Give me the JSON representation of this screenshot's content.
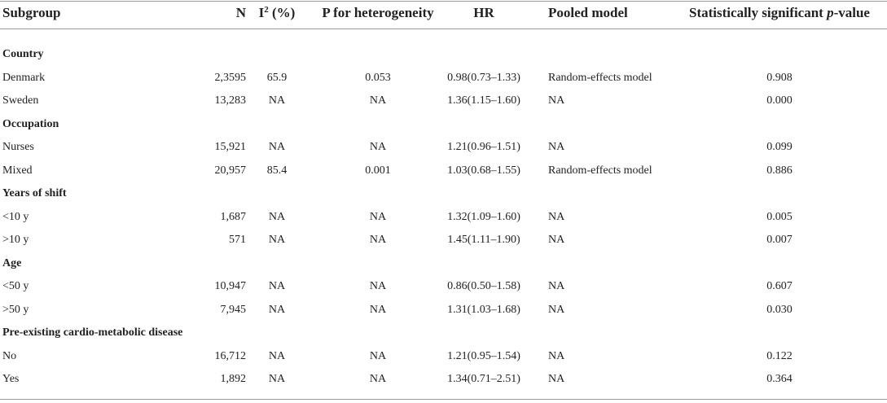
{
  "table": {
    "columns": [
      "Subgroup",
      "N",
      {
        "base": "I",
        "sup": "2",
        "rest": " (%)"
      },
      "P for heterogeneity",
      "HR",
      "Pooled model",
      {
        "base": "Statistically significant ",
        "italic": "p",
        "rest": "-value"
      }
    ],
    "groups": [
      {
        "title": "Country",
        "rows": [
          [
            "Denmark",
            "2,3595",
            "65.9",
            "0.053",
            "0.98(0.73–1.33)",
            "Random-effects model",
            "0.908"
          ],
          [
            "Sweden",
            "13,283",
            "NA",
            "NA",
            "1.36(1.15–1.60)",
            "NA",
            "0.000"
          ]
        ]
      },
      {
        "title": "Occupation",
        "rows": [
          [
            "Nurses",
            "15,921",
            "NA",
            "NA",
            "1.21(0.96–1.51)",
            "NA",
            "0.099"
          ],
          [
            "Mixed",
            "20,957",
            "85.4",
            "0.001",
            "1.03(0.68–1.55)",
            "Random-effects model",
            "0.886"
          ]
        ]
      },
      {
        "title": "Years of shift",
        "rows": [
          [
            "<10 y",
            "1,687",
            "NA",
            "NA",
            "1.32(1.09–1.60)",
            "NA",
            "0.005"
          ],
          [
            ">10 y",
            "571",
            "NA",
            "NA",
            "1.45(1.11–1.90)",
            "NA",
            "0.007"
          ]
        ]
      },
      {
        "title": "Age",
        "rows": [
          [
            "<50 y",
            "10,947",
            "NA",
            "NA",
            "0.86(0.50–1.58)",
            "NA",
            "0.607"
          ],
          [
            ">50 y",
            "7,945",
            "NA",
            "NA",
            "1.31(1.03–1.68)",
            "NA",
            "0.030"
          ]
        ]
      },
      {
        "title": "Pre-existing cardio-metabolic disease",
        "rows": [
          [
            "No",
            "16,712",
            "NA",
            "NA",
            "1.21(0.95–1.54)",
            "NA",
            "0.122"
          ],
          [
            "Yes",
            "1,892",
            "NA",
            "NA",
            "1.34(0.71–2.51)",
            "NA",
            "0.364"
          ]
        ]
      }
    ]
  }
}
